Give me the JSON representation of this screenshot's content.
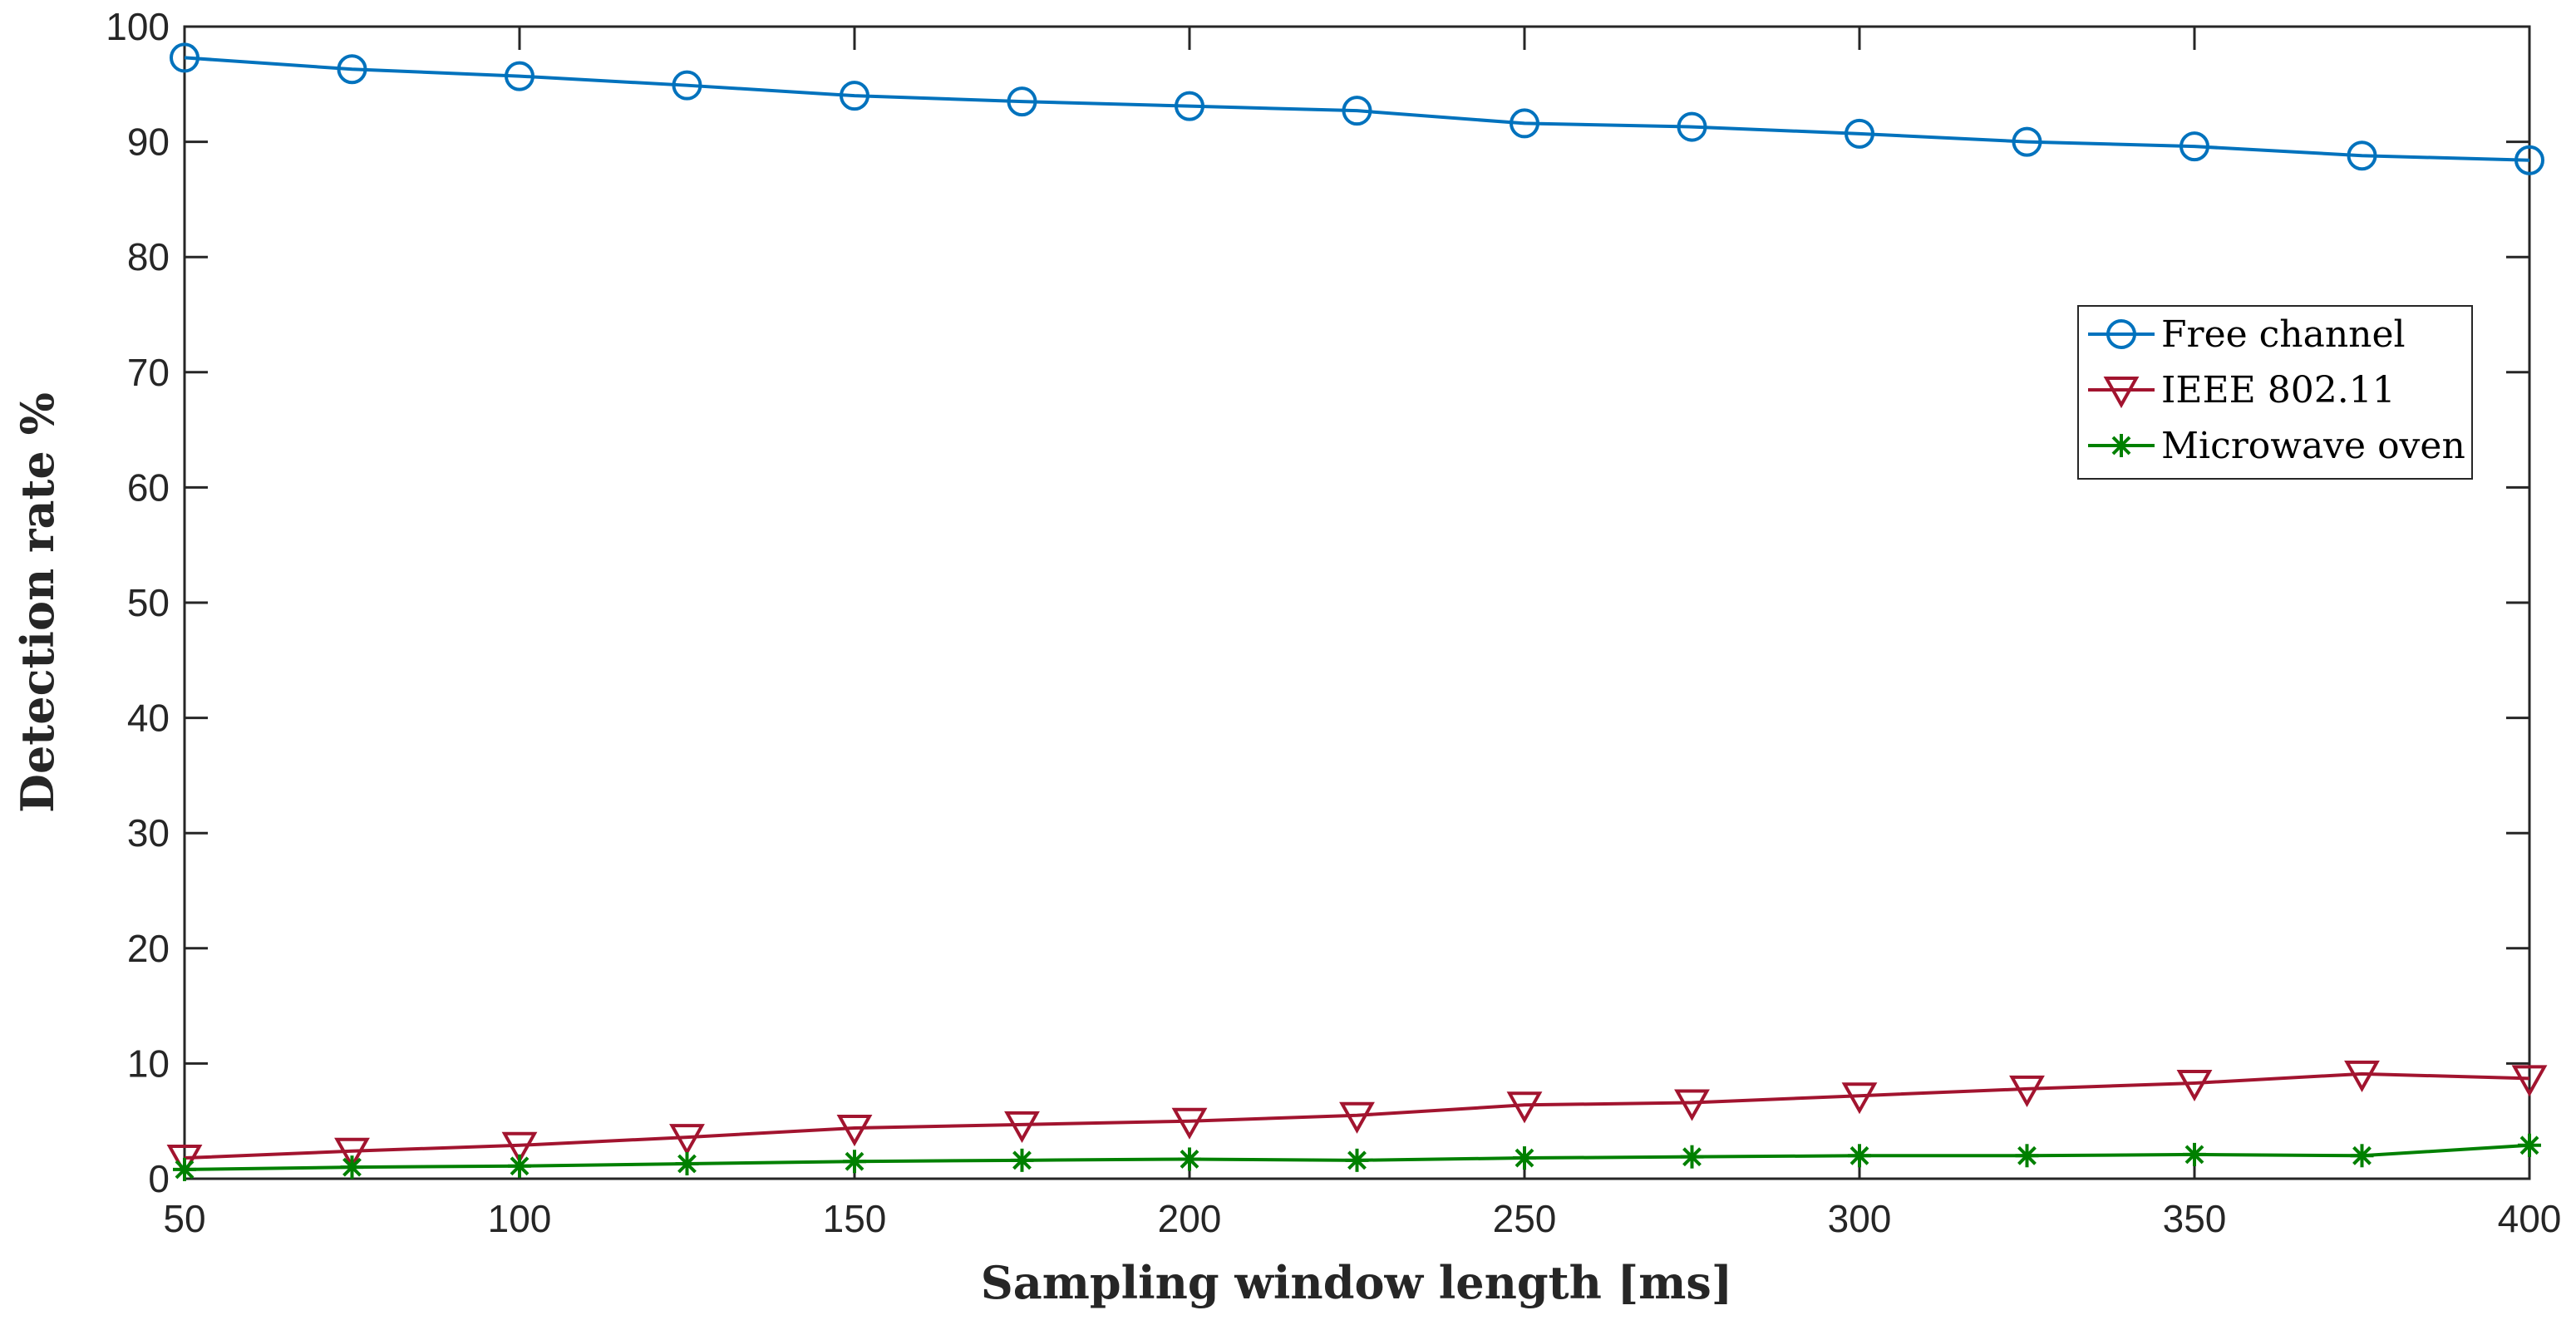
{
  "chart_data": {
    "type": "line",
    "xlabel": "Sampling window length [ms]",
    "ylabel": "Detection rate %",
    "xlim": [
      50,
      400
    ],
    "ylim": [
      0,
      100
    ],
    "xticks": [
      50,
      100,
      150,
      200,
      250,
      300,
      350,
      400
    ],
    "yticks": [
      0,
      10,
      20,
      30,
      40,
      50,
      60,
      70,
      80,
      90,
      100
    ],
    "x": [
      50,
      75,
      100,
      125,
      150,
      175,
      200,
      225,
      250,
      275,
      300,
      325,
      350,
      375,
      400
    ],
    "grid": false,
    "legend_position": "top-right",
    "series": [
      {
        "name": "Free channel",
        "color": "#0072BD",
        "marker": "circle",
        "values": [
          97.3,
          96.3,
          95.7,
          94.9,
          94.0,
          93.5,
          93.1,
          92.7,
          91.6,
          91.3,
          90.7,
          90.0,
          89.6,
          88.8,
          88.4
        ]
      },
      {
        "name": "IEEE 802.11",
        "color": "#A2142F",
        "marker": "triangle-down",
        "values": [
          1.8,
          2.4,
          2.9,
          3.6,
          4.4,
          4.7,
          5.0,
          5.5,
          6.4,
          6.6,
          7.2,
          7.8,
          8.3,
          9.1,
          8.7
        ]
      },
      {
        "name": "Microwave oven",
        "color": "#008000",
        "marker": "asterisk",
        "values": [
          0.8,
          1.0,
          1.1,
          1.3,
          1.5,
          1.6,
          1.7,
          1.6,
          1.8,
          1.9,
          2.0,
          2.0,
          2.1,
          2.0,
          2.9
        ]
      }
    ]
  }
}
